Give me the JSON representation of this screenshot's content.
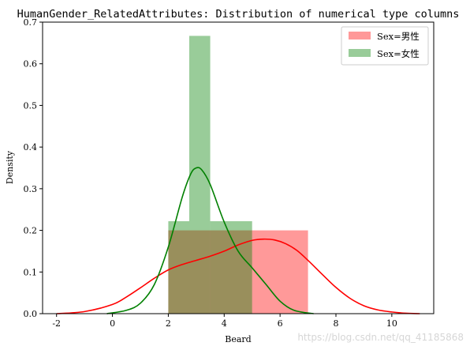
{
  "chart_data": {
    "type": "bar",
    "title": "HumanGender_RelatedAttributes: Distribution of numerical type columns",
    "xlabel": "Beard",
    "ylabel": "Density",
    "xlim": [
      -2.5,
      11.5
    ],
    "ylim": [
      0,
      0.7
    ],
    "xticks": [
      -2,
      0,
      2,
      4,
      6,
      8,
      10
    ],
    "yticks": [
      0.0,
      0.1,
      0.2,
      0.3,
      0.4,
      0.5,
      0.6,
      0.7
    ],
    "grid": false,
    "legend_position": "top-right",
    "series": [
      {
        "name": "Sex=男性",
        "color": "#ff0000",
        "histogram": [
          {
            "x0": 2.0,
            "x1": 5.0,
            "density": 0.2
          },
          {
            "x0": 5.0,
            "x1": 7.0,
            "density": 0.2
          }
        ],
        "kde": {
          "x": [
            -2.0,
            -1.0,
            0.0,
            0.5,
            1.0,
            1.5,
            2.0,
            2.5,
            3.0,
            3.5,
            4.0,
            4.5,
            5.0,
            5.4,
            5.8,
            6.2,
            6.6,
            7.0,
            7.5,
            8.0,
            8.5,
            9.0,
            9.5,
            10.0,
            10.5,
            11.0
          ],
          "y": [
            0.0,
            0.005,
            0.022,
            0.04,
            0.062,
            0.085,
            0.105,
            0.118,
            0.128,
            0.138,
            0.15,
            0.165,
            0.176,
            0.179,
            0.177,
            0.168,
            0.152,
            0.128,
            0.095,
            0.063,
            0.037,
            0.019,
            0.009,
            0.004,
            0.001,
            0.0
          ]
        }
      },
      {
        "name": "Sex=女性",
        "color": "#008000",
        "histogram": [
          {
            "x0": 2.0,
            "x1": 2.75,
            "density": 0.222
          },
          {
            "x0": 2.75,
            "x1": 3.5,
            "density": 0.667
          },
          {
            "x0": 3.5,
            "x1": 5.0,
            "density": 0.222
          }
        ],
        "kde": {
          "x": [
            -0.2,
            0.5,
            1.0,
            1.5,
            2.0,
            2.5,
            2.8,
            3.0,
            3.2,
            3.5,
            4.0,
            4.5,
            5.0,
            5.5,
            6.0,
            6.5,
            7.2
          ],
          "y": [
            0.0,
            0.008,
            0.025,
            0.07,
            0.16,
            0.28,
            0.335,
            0.35,
            0.345,
            0.31,
            0.22,
            0.15,
            0.11,
            0.07,
            0.03,
            0.008,
            0.0
          ]
        }
      }
    ]
  },
  "legend": {
    "items": [
      {
        "label": "Sex=男性",
        "color": "#ff0000"
      },
      {
        "label": "Sex=女性",
        "color": "#008000"
      }
    ]
  },
  "watermark": "https://blog.csdn.net/qq_41185868"
}
